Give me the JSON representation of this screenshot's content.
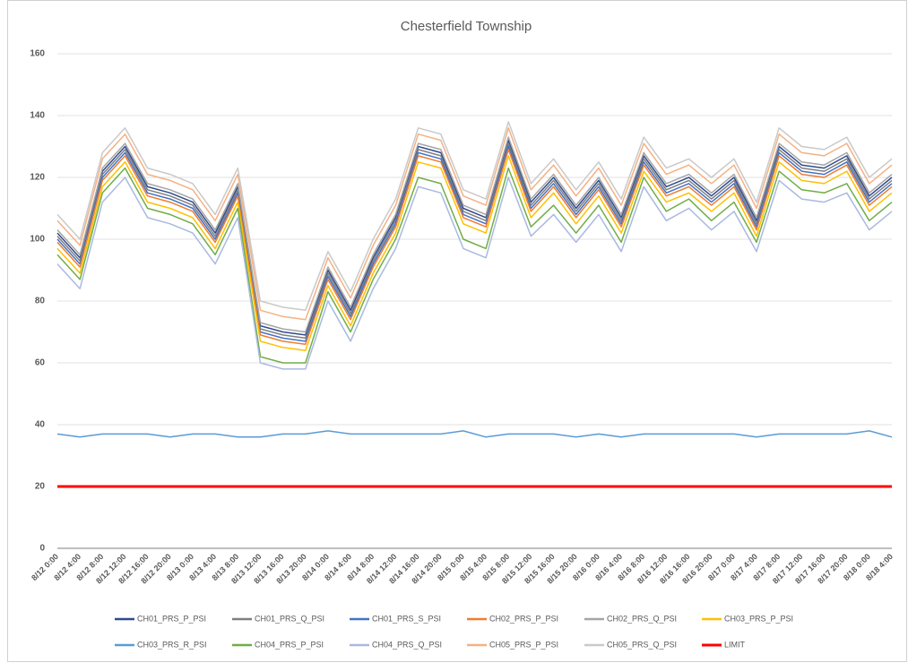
{
  "chart_data": {
    "type": "line",
    "title": "Chesterfield Township",
    "categories": [
      "8/12 0:00",
      "8/12 4:00",
      "8/12 8:00",
      "8/12 12:00",
      "8/12 16:00",
      "8/12 20:00",
      "8/13 0:00",
      "8/13 4:00",
      "8/13 8:00",
      "8/13 12:00",
      "8/13 16:00",
      "8/13 20:00",
      "8/14 0:00",
      "8/14 4:00",
      "8/14 8:00",
      "8/14 12:00",
      "8/14 16:00",
      "8/14 20:00",
      "8/15 0:00",
      "8/15 4:00",
      "8/15 8:00",
      "8/15 12:00",
      "8/15 16:00",
      "8/15 20:00",
      "8/16 0:00",
      "8/16 4:00",
      "8/16 8:00",
      "8/16 12:00",
      "8/16 16:00",
      "8/16 20:00",
      "8/17 0:00",
      "8/17 4:00",
      "8/17 8:00",
      "8/17 12:00",
      "8/17 16:00",
      "8/17 20:00",
      "8/18 0:00",
      "8/18 4:00"
    ],
    "ylim": [
      0,
      160
    ],
    "yticks": [
      0,
      20,
      40,
      60,
      80,
      100,
      120,
      140,
      160
    ],
    "grid": true,
    "series": [
      {
        "name": "CH01_PRS_P_PSI",
        "color": "#2f4b8f",
        "values": [
          102,
          94,
          122,
          130,
          117,
          115,
          112,
          102,
          117,
          72,
          70,
          69,
          90,
          77,
          94,
          107,
          130,
          128,
          110,
          107,
          132,
          112,
          120,
          110,
          119,
          107,
          127,
          117,
          120,
          114,
          120,
          106,
          130,
          124,
          123,
          127,
          114,
          120
        ]
      },
      {
        "name": "CH01_PRS_Q_PSI",
        "color": "#7f7f7f",
        "values": [
          101,
          93,
          121,
          129,
          116,
          114,
          111,
          101,
          116,
          71,
          69,
          68,
          89,
          76,
          93,
          106,
          129,
          127,
          109,
          106,
          131,
          111,
          119,
          109,
          118,
          106,
          126,
          116,
          119,
          113,
          119,
          105,
          129,
          123,
          122,
          126,
          113,
          119
        ]
      },
      {
        "name": "CH01_PRS_S_PSI",
        "color": "#4472c4",
        "values": [
          100,
          92,
          120,
          128,
          115,
          113,
          110,
          100,
          115,
          70,
          68,
          67,
          88,
          75,
          92,
          105,
          128,
          126,
          108,
          105,
          130,
          110,
          118,
          108,
          117,
          105,
          125,
          115,
          118,
          112,
          118,
          104,
          128,
          122,
          121,
          125,
          112,
          118
        ]
      },
      {
        "name": "CH02_PRS_P_PSI",
        "color": "#ed7d31",
        "values": [
          99,
          91,
          119,
          127,
          114,
          112,
          109,
          99,
          114,
          69,
          67,
          66,
          87,
          74,
          91,
          104,
          127,
          125,
          107,
          104,
          129,
          109,
          117,
          107,
          116,
          104,
          124,
          114,
          117,
          111,
          117,
          103,
          127,
          121,
          120,
          124,
          111,
          117
        ]
      },
      {
        "name": "CH02_PRS_Q_PSI",
        "color": "#a5a5a5",
        "values": [
          103,
          95,
          123,
          131,
          118,
          116,
          113,
          103,
          118,
          73,
          71,
          70,
          91,
          78,
          95,
          108,
          131,
          129,
          111,
          108,
          133,
          113,
          121,
          111,
          120,
          108,
          128,
          118,
          121,
          115,
          121,
          107,
          131,
          125,
          124,
          128,
          115,
          121
        ]
      },
      {
        "name": "CH03_PRS_P_PSI",
        "color": "#ffc000",
        "values": [
          97,
          89,
          117,
          125,
          112,
          110,
          107,
          97,
          112,
          67,
          65,
          64,
          85,
          72,
          89,
          102,
          125,
          123,
          105,
          102,
          127,
          107,
          115,
          105,
          114,
          102,
          122,
          112,
          115,
          109,
          115,
          101,
          125,
          119,
          118,
          122,
          109,
          115
        ]
      },
      {
        "name": "CH03_PRS_R_PSI",
        "color": "#5b9bd5",
        "values": [
          37,
          36,
          37,
          37,
          37,
          36,
          37,
          37,
          36,
          36,
          37,
          37,
          38,
          37,
          37,
          37,
          37,
          37,
          38,
          36,
          37,
          37,
          37,
          36,
          37,
          36,
          37,
          37,
          37,
          37,
          37,
          36,
          37,
          37,
          37,
          37,
          38,
          36
        ]
      },
      {
        "name": "CH04_PRS_P_PSI",
        "color": "#70ad47",
        "values": [
          95,
          87,
          115,
          123,
          110,
          108,
          105,
          95,
          110,
          62,
          60,
          60,
          83,
          70,
          87,
          100,
          120,
          118,
          100,
          97,
          123,
          104,
          111,
          102,
          111,
          99,
          120,
          109,
          113,
          106,
          112,
          99,
          122,
          116,
          115,
          118,
          106,
          112
        ]
      },
      {
        "name": "CH04_PRS_Q_PSI",
        "color": "#a9b9e0",
        "values": [
          92,
          84,
          112,
          120,
          107,
          105,
          102,
          92,
          107,
          60,
          58,
          58,
          80,
          67,
          84,
          97,
          117,
          115,
          97,
          94,
          120,
          101,
          108,
          99,
          108,
          96,
          117,
          106,
          110,
          103,
          109,
          96,
          119,
          113,
          112,
          115,
          103,
          109
        ]
      },
      {
        "name": "CH05_PRS_P_PSI",
        "color": "#f4b183",
        "values": [
          106,
          98,
          126,
          134,
          121,
          119,
          116,
          106,
          121,
          77,
          75,
          74,
          94,
          81,
          98,
          111,
          134,
          132,
          114,
          111,
          136,
          116,
          124,
          114,
          123,
          111,
          131,
          121,
          124,
          118,
          124,
          110,
          134,
          128,
          127,
          131,
          118,
          124
        ]
      },
      {
        "name": "CH05_PRS_Q_PSI",
        "color": "#c9c9c9",
        "values": [
          108,
          100,
          128,
          136,
          123,
          121,
          118,
          108,
          123,
          80,
          78,
          77,
          96,
          83,
          100,
          113,
          136,
          134,
          116,
          113,
          138,
          118,
          126,
          116,
          125,
          113,
          133,
          123,
          126,
          120,
          126,
          112,
          136,
          130,
          129,
          133,
          120,
          126
        ]
      },
      {
        "name": "LIMIT",
        "color": "#ff0000",
        "width": 3,
        "values": [
          20,
          20,
          20,
          20,
          20,
          20,
          20,
          20,
          20,
          20,
          20,
          20,
          20,
          20,
          20,
          20,
          20,
          20,
          20,
          20,
          20,
          20,
          20,
          20,
          20,
          20,
          20,
          20,
          20,
          20,
          20,
          20,
          20,
          20,
          20,
          20,
          20,
          20
        ]
      }
    ]
  }
}
